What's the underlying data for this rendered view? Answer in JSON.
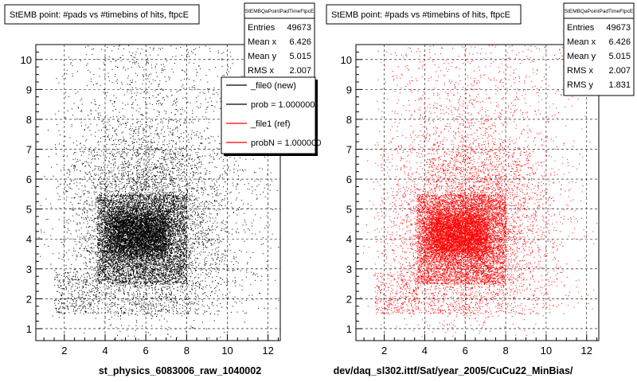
{
  "chart_data": [
    {
      "type": "scatter",
      "title": "StEMB point: #pads vs #timebins of hits, ftpcE",
      "xlabel": "st_physics_6083006_raw_1040002",
      "ylabel": "",
      "xlim": [
        0.6,
        12.6
      ],
      "ylim": [
        0.6,
        10.5
      ],
      "xticks": [
        2,
        4,
        6,
        8,
        10,
        12
      ],
      "yticks": [
        1,
        2,
        3,
        4,
        5,
        6,
        7,
        8,
        9,
        10
      ],
      "grid": true,
      "color": "#000000",
      "points_estimated": 49673,
      "stats": {
        "name": "StEMBQaPointPadTimeFtpcE",
        "rows": [
          {
            "label": "Entries",
            "value": "49673"
          },
          {
            "label": "Mean x",
            "value": "6.426"
          },
          {
            "label": "Mean y",
            "value": "5.015"
          },
          {
            "label": "RMS x",
            "value": "2.007"
          }
        ]
      },
      "legend": {
        "placement": "top-right",
        "entries": [
          {
            "label": "_file0 (new)",
            "color": "#000000"
          },
          {
            "label": "prob = 1.000000",
            "color": "#000000"
          },
          {
            "label": "_file1 (ref)",
            "color": "#ff0000"
          },
          {
            "label": "probN = 1.000000",
            "color": "#ff0000"
          }
        ]
      },
      "density": {
        "core": {
          "x": [
            3.6,
            8.0
          ],
          "y": [
            2.5,
            5.5
          ]
        },
        "dense_core": {
          "x": [
            4.2,
            7.0
          ],
          "y": [
            3.5,
            4.8
          ]
        },
        "halo": {
          "x": [
            1.5,
            12.5
          ],
          "y": [
            1.5,
            10.5
          ]
        }
      }
    },
    {
      "type": "scatter",
      "title": "StEMB point: #pads vs #timebins of hits, ftpcE",
      "xlabel": "dev/daq_sl302.ittf/Sat/year_2005/CuCu22_MinBias/",
      "ylabel": "",
      "xlim": [
        0.6,
        12.6
      ],
      "ylim": [
        0.6,
        10.5
      ],
      "xticks": [
        2,
        4,
        6,
        8,
        10,
        12
      ],
      "yticks": [
        1,
        2,
        3,
        4,
        5,
        6,
        7,
        8,
        9,
        10
      ],
      "grid": true,
      "color": "#ff0000",
      "points_estimated": 49673,
      "stats": {
        "name": "StEMBQaPointPadTimeFtpcE",
        "rows": [
          {
            "label": "Entries",
            "value": "49673"
          },
          {
            "label": "Mean x",
            "value": "6.426"
          },
          {
            "label": "Mean y",
            "value": "5.015"
          },
          {
            "label": "RMS x",
            "value": "2.007"
          },
          {
            "label": "RMS y",
            "value": "1.831"
          }
        ]
      },
      "density": {
        "core": {
          "x": [
            3.6,
            8.0
          ],
          "y": [
            2.5,
            5.5
          ]
        },
        "dense_core": {
          "x": [
            4.2,
            7.0
          ],
          "y": [
            3.5,
            4.8
          ]
        },
        "halo": {
          "x": [
            1.5,
            12.5
          ],
          "y": [
            1.5,
            10.5
          ]
        }
      }
    }
  ]
}
